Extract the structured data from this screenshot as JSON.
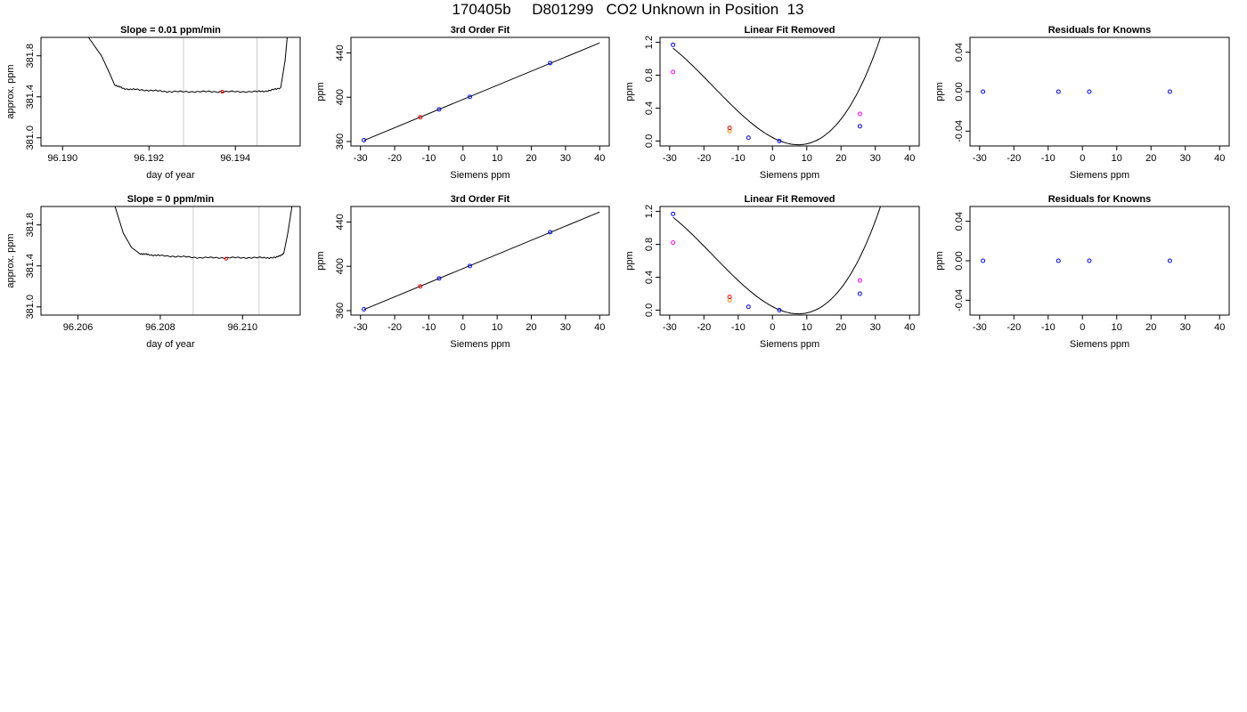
{
  "page_title": "170405b     D801299   CO2 Unknown in Position  13",
  "colors": {
    "known": "#0000ff",
    "unknown": "#ff0000",
    "removed_known": "#ff00ff",
    "removed_unknown": "#ff8c00",
    "marker": "#cccccc",
    "line": "#000000"
  },
  "chart_data": [
    {
      "type": "line",
      "title": "Slope =  0.01  ppm/min",
      "xlabel": "day of year",
      "ylabel": "approx. ppm",
      "xlim": [
        96.1895,
        96.1955
      ],
      "ylim": [
        380.92,
        381.98
      ],
      "xticks": [
        96.19,
        96.192,
        96.194
      ],
      "xtick_labels": [
        "96.190",
        "96.192",
        "96.194"
      ],
      "yticks": [
        381.0,
        381.4,
        381.8
      ],
      "ytick_labels": [
        "381.0",
        "381.4",
        "381.8"
      ],
      "series": [
        {
          "x": [
            96.1906,
            96.1909,
            96.1911,
            96.1912,
            96.1914,
            96.1917,
            96.1921,
            96.1925,
            96.193,
            96.1935,
            96.194,
            96.1945,
            96.1948,
            96.19505,
            96.19515,
            96.1952
          ],
          "y": [
            381.98,
            381.8,
            381.62,
            381.52,
            381.48,
            381.47,
            381.46,
            381.45,
            381.45,
            381.45,
            381.45,
            381.45,
            381.46,
            381.49,
            381.75,
            381.98
          ]
        }
      ],
      "markers_x": [
        96.1928,
        96.1945
      ],
      "points": [
        {
          "x": 96.1937,
          "y": 381.45
        }
      ],
      "noise_amplitude": 0.008
    },
    {
      "type": "scatter",
      "title": "3rd Order Fit",
      "xlabel": "Siemens ppm",
      "ylabel": "ppm",
      "xlim": [
        -32.8,
        42.8
      ],
      "ylim": [
        356,
        454
      ],
      "xticks": [
        -30,
        -20,
        -10,
        0,
        10,
        20,
        30,
        40
      ],
      "xtick_labels": [
        "-30",
        "-20",
        "-10",
        "0",
        "10",
        "20",
        "30",
        "40"
      ],
      "yticks": [
        360,
        400,
        440
      ],
      "ytick_labels": [
        "360",
        "400",
        "440"
      ],
      "fit_line": {
        "x": [
          -29,
          40
        ],
        "y": [
          361,
          449
        ]
      },
      "known_points": [
        {
          "x": -29,
          "y": 361.2
        },
        {
          "x": -7,
          "y": 389
        },
        {
          "x": 2,
          "y": 400.3
        },
        {
          "x": 25.5,
          "y": 430.8
        }
      ],
      "unknown_points": [
        {
          "x": -12.5,
          "y": 381.9
        }
      ]
    },
    {
      "type": "scatter",
      "title": "Linear Fit Removed",
      "xlabel": "Siemens ppm",
      "ylabel": "ppm",
      "xlim": [
        -32.8,
        42.8
      ],
      "ylim": [
        -0.06,
        1.26
      ],
      "xticks": [
        -30,
        -20,
        -10,
        0,
        10,
        20,
        30,
        40
      ],
      "xtick_labels": [
        "-30",
        "-20",
        "-10",
        "0",
        "10",
        "20",
        "30",
        "40"
      ],
      "yticks": [
        0.0,
        0.4,
        0.8,
        1.2
      ],
      "ytick_labels": [
        "0.0",
        "0.4",
        "0.8",
        "1.2"
      ],
      "curve": {
        "coeffs": [
          2.3e-05,
          0.0012,
          -0.022,
          0.043
        ],
        "xrange": [
          -29,
          40
        ]
      },
      "known_points": [
        {
          "x": -29,
          "y": 1.17
        },
        {
          "x": -7,
          "y": 0.04
        },
        {
          "x": 2,
          "y": 0.0
        },
        {
          "x": 25.5,
          "y": 0.18
        }
      ],
      "unknown_points": [
        {
          "x": -12.5,
          "y": 0.16
        }
      ],
      "removed_known_points": [
        {
          "x": -29,
          "y": 0.84
        },
        {
          "x": 25.5,
          "y": 0.33
        }
      ],
      "removed_unknown_points": [
        {
          "x": -12.5,
          "y": 0.12
        }
      ]
    },
    {
      "type": "scatter",
      "title": "Residuals for Knowns",
      "xlabel": "Siemens ppm",
      "ylabel": "ppm",
      "xlim": [
        -32.8,
        42.8
      ],
      "ylim": [
        -0.055,
        0.055
      ],
      "xticks": [
        -30,
        -20,
        -10,
        0,
        10,
        20,
        30,
        40
      ],
      "xtick_labels": [
        "-30",
        "-20",
        "-10",
        "0",
        "10",
        "20",
        "30",
        "40"
      ],
      "yticks": [
        -0.04,
        0.0,
        0.04
      ],
      "ytick_labels": [
        "-0.04",
        "0.00",
        "0.04"
      ],
      "known_points": [
        {
          "x": -29,
          "y": 0
        },
        {
          "x": -7,
          "y": 0
        },
        {
          "x": 2,
          "y": 0
        },
        {
          "x": 25.5,
          "y": 0
        }
      ]
    },
    {
      "type": "line",
      "title": "Slope =  0  ppm/min",
      "xlabel": "day of year",
      "ylabel": "approx. ppm",
      "xlim": [
        96.2051,
        96.2114
      ],
      "ylim": [
        380.92,
        381.98
      ],
      "xticks": [
        96.206,
        96.208,
        96.21
      ],
      "xtick_labels": [
        "96.206",
        "96.208",
        "96.210"
      ],
      "yticks": [
        381.0,
        381.4,
        381.8
      ],
      "ytick_labels": [
        "381.0",
        "381.4",
        "381.8"
      ],
      "series": [
        {
          "x": [
            96.2069,
            96.2071,
            96.2073,
            96.2075,
            96.2077,
            96.208,
            96.2085,
            96.209,
            96.2095,
            96.21,
            96.2105,
            96.2108,
            96.211,
            96.2111,
            96.2112
          ],
          "y": [
            381.98,
            381.72,
            381.58,
            381.52,
            381.51,
            381.5,
            381.49,
            381.48,
            381.48,
            381.48,
            381.48,
            381.48,
            381.52,
            381.72,
            381.98
          ]
        }
      ],
      "markers_x": [
        96.2088,
        96.2104
      ],
      "points": [
        {
          "x": 96.2096,
          "y": 381.47
        }
      ],
      "noise_amplitude": 0.008
    },
    {
      "type": "scatter",
      "title": "3rd Order Fit",
      "xlabel": "Siemens ppm",
      "ylabel": "ppm",
      "xlim": [
        -32.8,
        42.8
      ],
      "ylim": [
        356,
        454
      ],
      "xticks": [
        -30,
        -20,
        -10,
        0,
        10,
        20,
        30,
        40
      ],
      "xtick_labels": [
        "-30",
        "-20",
        "-10",
        "0",
        "10",
        "20",
        "30",
        "40"
      ],
      "yticks": [
        360,
        400,
        440
      ],
      "ytick_labels": [
        "360",
        "400",
        "440"
      ],
      "fit_line": {
        "x": [
          -29,
          40
        ],
        "y": [
          361,
          449
        ]
      },
      "known_points": [
        {
          "x": -29,
          "y": 361.2
        },
        {
          "x": -7,
          "y": 389
        },
        {
          "x": 2,
          "y": 400.3
        },
        {
          "x": 25.5,
          "y": 430.8
        }
      ],
      "unknown_points": [
        {
          "x": -12.5,
          "y": 381.9
        }
      ]
    },
    {
      "type": "scatter",
      "title": "Linear Fit Removed",
      "xlabel": "Siemens ppm",
      "ylabel": "ppm",
      "xlim": [
        -32.8,
        42.8
      ],
      "ylim": [
        -0.06,
        1.26
      ],
      "xticks": [
        -30,
        -20,
        -10,
        0,
        10,
        20,
        30,
        40
      ],
      "xtick_labels": [
        "-30",
        "-20",
        "-10",
        "0",
        "10",
        "20",
        "30",
        "40"
      ],
      "yticks": [
        0.0,
        0.4,
        0.8,
        1.2
      ],
      "ytick_labels": [
        "0.0",
        "0.4",
        "0.8",
        "1.2"
      ],
      "curve": {
        "coeffs": [
          2.3e-05,
          0.0012,
          -0.022,
          0.043
        ],
        "xrange": [
          -29,
          40
        ]
      },
      "known_points": [
        {
          "x": -29,
          "y": 1.17
        },
        {
          "x": -7,
          "y": 0.04
        },
        {
          "x": 2,
          "y": 0.0
        },
        {
          "x": 25.5,
          "y": 0.2
        }
      ],
      "unknown_points": [
        {
          "x": -12.5,
          "y": 0.16
        }
      ],
      "removed_known_points": [
        {
          "x": -29,
          "y": 0.82
        },
        {
          "x": 25.5,
          "y": 0.36
        }
      ],
      "removed_unknown_points": [
        {
          "x": -12.5,
          "y": 0.12
        }
      ]
    },
    {
      "type": "scatter",
      "title": "Residuals for Knowns",
      "xlabel": "Siemens ppm",
      "ylabel": "ppm",
      "xlim": [
        -32.8,
        42.8
      ],
      "ylim": [
        -0.055,
        0.055
      ],
      "xticks": [
        -30,
        -20,
        -10,
        0,
        10,
        20,
        30,
        40
      ],
      "xtick_labels": [
        "-30",
        "-20",
        "-10",
        "0",
        "10",
        "20",
        "30",
        "40"
      ],
      "yticks": [
        -0.04,
        0.0,
        0.04
      ],
      "ytick_labels": [
        "-0.04",
        "0.00",
        "0.04"
      ],
      "known_points": [
        {
          "x": -29,
          "y": 0
        },
        {
          "x": -7,
          "y": 0
        },
        {
          "x": 2,
          "y": 0
        },
        {
          "x": 25.5,
          "y": 0
        }
      ]
    }
  ]
}
